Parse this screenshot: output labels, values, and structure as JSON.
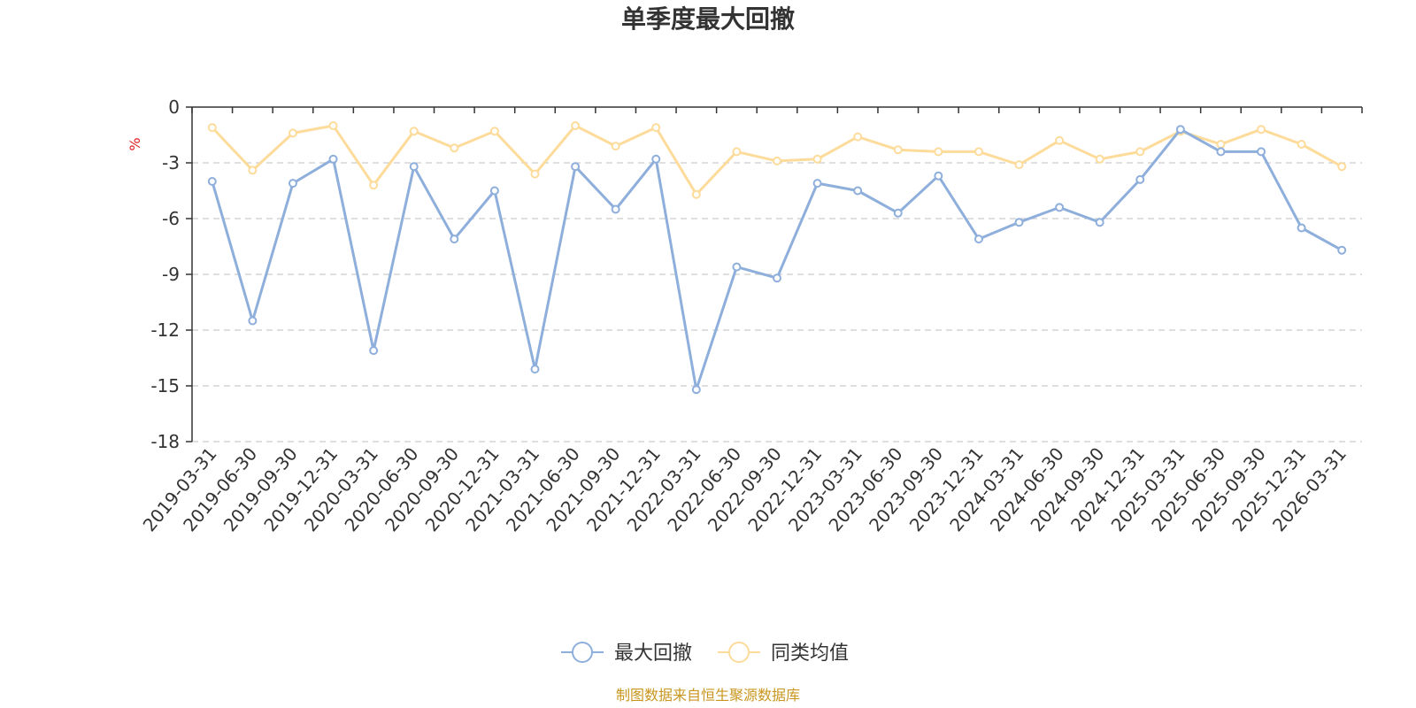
{
  "chart_data": {
    "type": "line",
    "title": "单季度最大回撤",
    "ylabel": "%",
    "ylim": [
      -18,
      0
    ],
    "yticks": [
      0,
      -3,
      -6,
      -9,
      -12,
      -15,
      -18
    ],
    "grid": true,
    "legend_position": "bottom-center",
    "categories": [
      "2019-03-31",
      "2019-06-30",
      "2019-09-30",
      "2019-12-31",
      "2020-03-31",
      "2020-06-30",
      "2020-09-30",
      "2020-12-31",
      "2021-03-31",
      "2021-06-30",
      "2021-09-30",
      "2021-12-31",
      "2022-03-31",
      "2022-06-30",
      "2022-09-30",
      "2022-12-31",
      "2023-03-31",
      "2023-06-30",
      "2023-09-30",
      "2023-12-31",
      "2024-03-31",
      "2024-06-30",
      "2024-09-30",
      "2024-12-31",
      "2025-03-31",
      "2025-06-30",
      "2025-09-30",
      "2025-12-31",
      "2026-03-31"
    ],
    "series": [
      {
        "name": "最大回撤",
        "color": "#8eaedb",
        "values": [
          -4.0,
          -11.5,
          -4.1,
          -2.8,
          -13.1,
          -3.2,
          -7.1,
          -4.5,
          -14.1,
          -3.2,
          -5.5,
          -2.8,
          -15.2,
          -8.6,
          -9.2,
          -4.1,
          -4.5,
          -5.7,
          -3.7,
          -7.1,
          -6.2,
          -5.4,
          -6.2,
          -3.9,
          -1.2,
          -2.4,
          -2.4,
          -6.5,
          -7.7
        ]
      },
      {
        "name": "同类均值",
        "color": "#fddb9a",
        "values": [
          -1.1,
          -3.4,
          -1.4,
          -1.0,
          -4.2,
          -1.3,
          -2.2,
          -1.3,
          -3.6,
          -1.0,
          -2.1,
          -1.1,
          -4.7,
          -2.4,
          -2.9,
          -2.8,
          -1.6,
          -2.3,
          -2.4,
          -2.4,
          -3.1,
          -1.8,
          -2.8,
          -2.4,
          -1.3,
          -2.0,
          -1.2,
          -2.0,
          -3.2
        ]
      }
    ]
  },
  "colors": {
    "axis": "#333333",
    "grid": "#cccccc",
    "unit": "#e02020",
    "source": "#c8961e"
  },
  "source_text": "制图数据来自恒生聚源数据库"
}
